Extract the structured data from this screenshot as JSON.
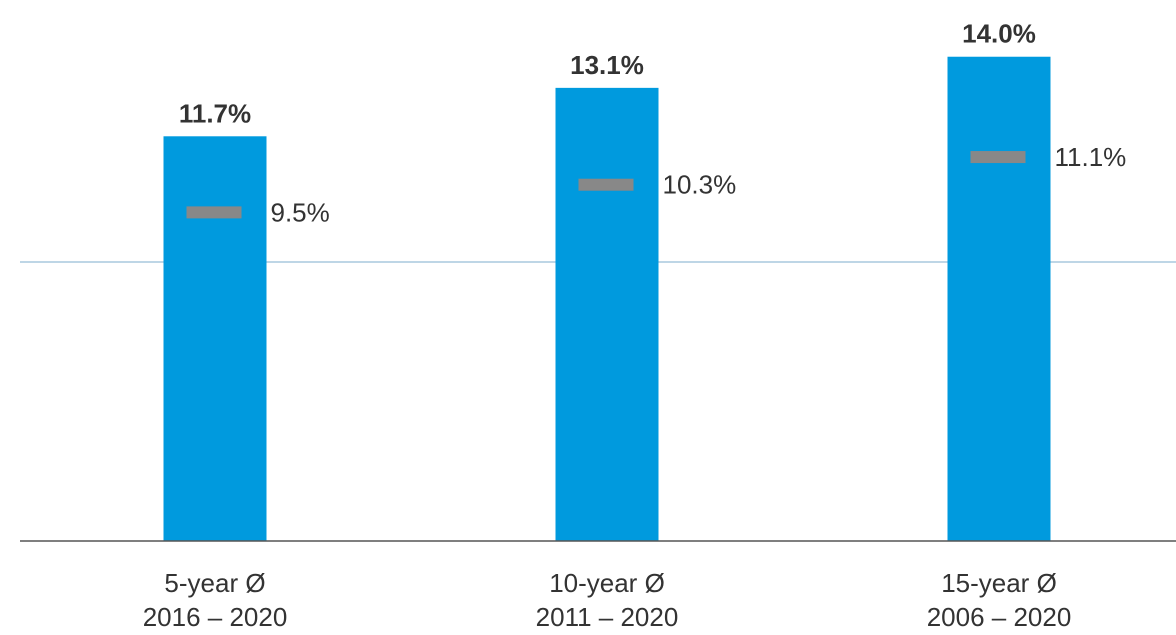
{
  "chart_data": {
    "type": "bar",
    "categories": [
      "5-year Ø",
      "10-year Ø",
      "15-year Ø"
    ],
    "category_periods": [
      "2016 – 2020",
      "2011 – 2020",
      "2006 – 2020"
    ],
    "series": [
      {
        "kind": "bar",
        "values": [
          11.7,
          13.1,
          14.0
        ],
        "labels": [
          "11.7%",
          "13.1%",
          "14.0%"
        ]
      },
      {
        "kind": "marker",
        "values": [
          9.5,
          10.3,
          11.1
        ],
        "labels": [
          "9.5%",
          "10.3%",
          "11.1%"
        ]
      }
    ],
    "ylim": [
      0,
      14.05
    ],
    "reference_line": 6.95,
    "grid": false,
    "title": "",
    "xlabel": "",
    "ylabel": "",
    "colors": {
      "bar": "#009ADE",
      "marker": "#888888",
      "axis": "#555555",
      "reference_line": "#A9C9DD",
      "text": "#333333"
    }
  }
}
